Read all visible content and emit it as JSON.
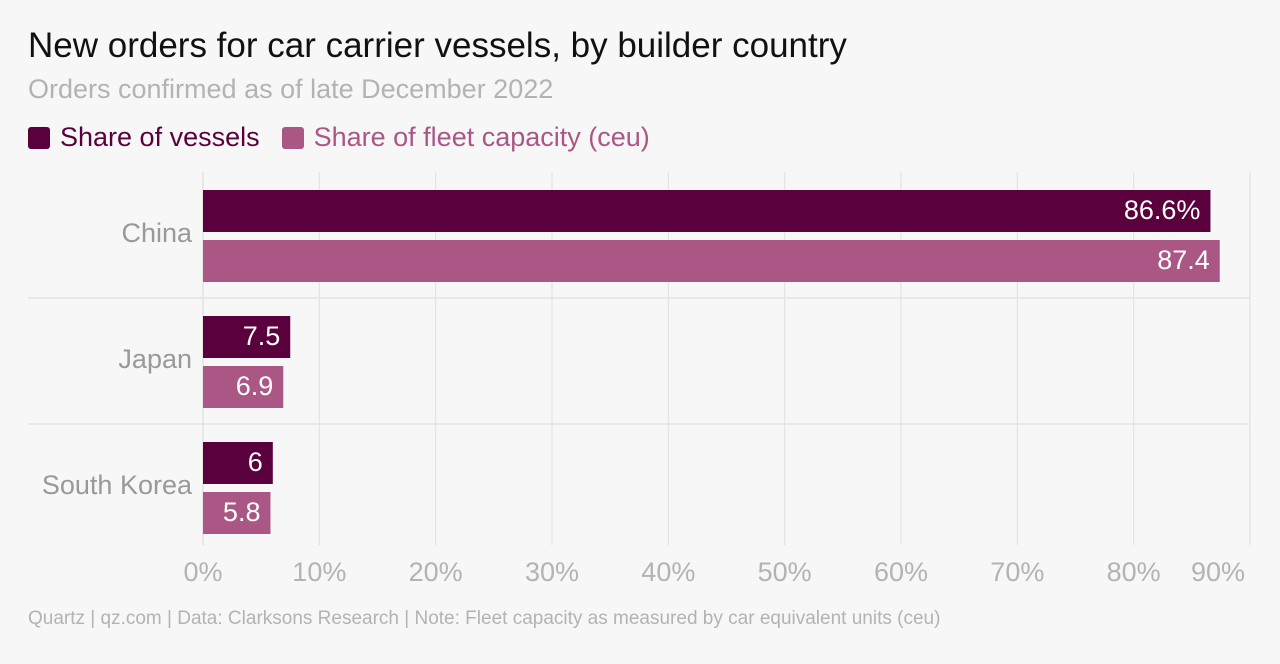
{
  "title": "New orders for car carrier vessels, by builder country",
  "subtitle": "Orders confirmed as of late December 2022",
  "footer": "Quartz | qz.com | Data: Clarksons Research | Note: Fleet capacity as measured by car equivalent units (ceu)",
  "colors": {
    "vessels": "#5a003c",
    "capacity": "#aa5786",
    "tick_text": "#b3b3b3",
    "category_text": "#999999",
    "grid": "#e3e3e3",
    "bar_label": "#ffffff"
  },
  "chart_data": {
    "type": "bar",
    "orientation": "horizontal",
    "categories": [
      "China",
      "Japan",
      "South Korea"
    ],
    "series": [
      {
        "name": "Share of vessels",
        "values": [
          86.6,
          7.5,
          6
        ],
        "labels": [
          "86.6%",
          "7.5",
          "6"
        ]
      },
      {
        "name": "Share of fleet capacity (ceu)",
        "values": [
          87.4,
          6.9,
          5.8
        ],
        "labels": [
          "87.4",
          "6.9",
          "5.8"
        ]
      }
    ],
    "xlim": [
      0,
      90
    ],
    "xticks": [
      "0%",
      "10%",
      "20%",
      "30%",
      "40%",
      "50%",
      "60%",
      "70%",
      "80%",
      "90%"
    ],
    "grid": true,
    "legend_position": "top-left"
  }
}
